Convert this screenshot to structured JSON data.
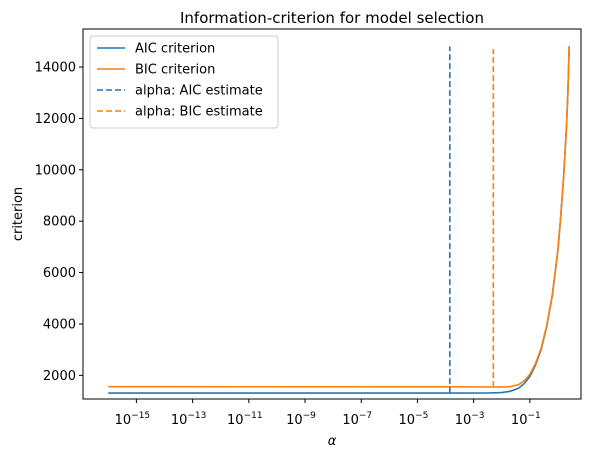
{
  "chart_data": {
    "type": "line",
    "title": "Information-criterion for model selection",
    "xlabel": "α",
    "ylabel": "criterion",
    "xscale": "log",
    "xlim_log10": [
      -16.9,
      0.82
    ],
    "ylim": [
      1080,
      15480
    ],
    "xticks": [
      {
        "exp": -15,
        "label": "10",
        "sup": "−15"
      },
      {
        "exp": -13,
        "label": "10",
        "sup": "−13"
      },
      {
        "exp": -11,
        "label": "10",
        "sup": "−11"
      },
      {
        "exp": -9,
        "label": "10",
        "sup": "−9"
      },
      {
        "exp": -7,
        "label": "10",
        "sup": "−7"
      },
      {
        "exp": -5,
        "label": "10",
        "sup": "−5"
      },
      {
        "exp": -3,
        "label": "10",
        "sup": "−3"
      },
      {
        "exp": -1,
        "label": "10",
        "sup": "−1"
      }
    ],
    "yticks": [
      {
        "value": 2000,
        "label": "2000"
      },
      {
        "value": 4000,
        "label": "4000"
      },
      {
        "value": 6000,
        "label": "6000"
      },
      {
        "value": 8000,
        "label": "8000"
      },
      {
        "value": 10000,
        "label": "10000"
      },
      {
        "value": 12000,
        "label": "12000"
      },
      {
        "value": 14000,
        "label": "14000"
      }
    ],
    "series": [
      {
        "name": "AIC criterion",
        "color": "#1f77b4",
        "style": "solid",
        "x_log10": [
          -16.0,
          -3.5,
          -2.5,
          -2.0,
          -1.7,
          -1.4,
          -1.2,
          -1.0,
          -0.8,
          -0.6,
          -0.4,
          -0.2,
          0.0,
          0.1,
          0.2,
          0.3,
          0.35,
          0.4
        ],
        "y": [
          1310,
          1310,
          1312,
          1330,
          1380,
          1500,
          1680,
          1960,
          2400,
          3000,
          3900,
          5100,
          6900,
          8200,
          9700,
          11600,
          12900,
          14800
        ]
      },
      {
        "name": "BIC criterion",
        "color": "#ff7f0e",
        "style": "solid",
        "x_log10": [
          -16.0,
          -3.5,
          -2.5,
          -2.0,
          -1.7,
          -1.4,
          -1.2,
          -1.0,
          -0.8,
          -0.6,
          -0.4,
          -0.2,
          0.0,
          0.1,
          0.2,
          0.3,
          0.35,
          0.4
        ],
        "y": [
          1560,
          1555,
          1548,
          1545,
          1560,
          1640,
          1790,
          2040,
          2460,
          3050,
          3940,
          5130,
          6920,
          8220,
          9720,
          11620,
          12920,
          14820
        ]
      },
      {
        "name": "alpha: AIC estimate",
        "color": "#1f77b4",
        "style": "dashed",
        "x_log10": [
          -3.85,
          -3.85
        ],
        "y": [
          1310,
          14800
        ]
      },
      {
        "name": "alpha: BIC estimate",
        "color": "#ff7f0e",
        "style": "dashed",
        "x_log10": [
          -2.3,
          -2.3
        ],
        "y": [
          1545,
          14700
        ]
      }
    ],
    "legend": "top-left",
    "grid": false
  }
}
